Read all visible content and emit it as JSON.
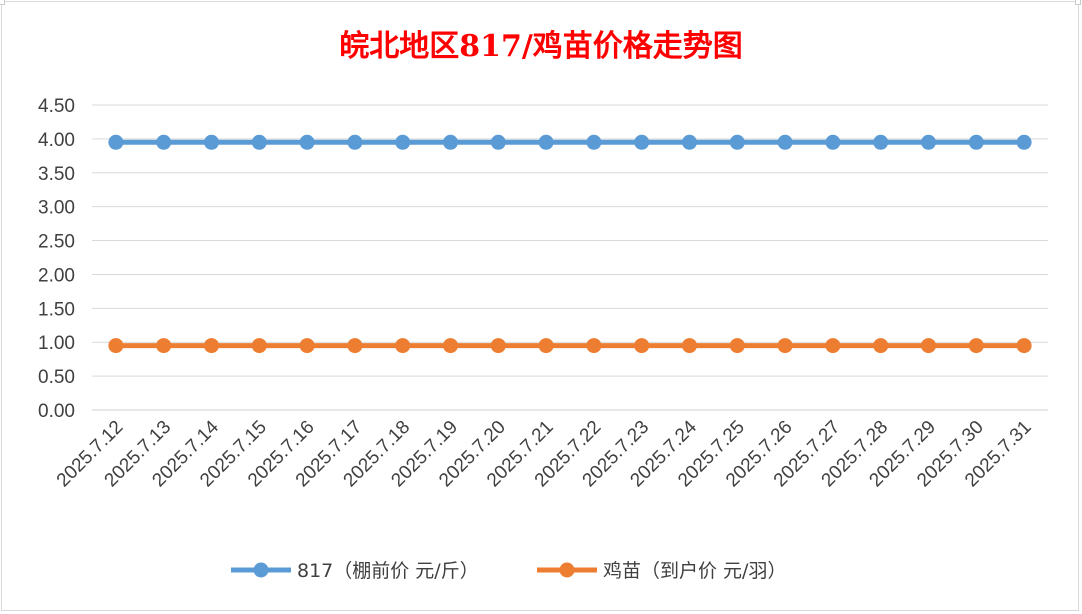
{
  "chart_data": {
    "type": "line",
    "title": "皖北地区817/鸡苗价格走势图",
    "categories": [
      "2025.7.12",
      "2025.7.13",
      "2025.7.14",
      "2025.7.15",
      "2025.7.16",
      "2025.7.17",
      "2025.7.18",
      "2025.7.19",
      "2025.7.20",
      "2025.7.21",
      "2025.7.22",
      "2025.7.23",
      "2025.7.24",
      "2025.7.25",
      "2025.7.26",
      "2025.7.27",
      "2025.7.28",
      "2025.7.29",
      "2025.7.30",
      "2025.7.31"
    ],
    "y_ticks": [
      "0.00",
      "0.50",
      "1.00",
      "1.50",
      "2.00",
      "2.50",
      "3.00",
      "3.50",
      "4.00",
      "4.50"
    ],
    "ylim": [
      0,
      4.5
    ],
    "grid": true,
    "legend_position": "bottom",
    "series": [
      {
        "name": "817（棚前价 元/斤）",
        "color": "#5b9bd5",
        "values": [
          3.95,
          3.95,
          3.95,
          3.95,
          3.95,
          3.95,
          3.95,
          3.95,
          3.95,
          3.95,
          3.95,
          3.95,
          3.95,
          3.95,
          3.95,
          3.95,
          3.95,
          3.95,
          3.95,
          3.95
        ]
      },
      {
        "name": "鸡苗（到户价 元/羽）",
        "color": "#ed7d31",
        "values": [
          0.95,
          0.95,
          0.95,
          0.95,
          0.95,
          0.95,
          0.95,
          0.95,
          0.95,
          0.95,
          0.95,
          0.95,
          0.95,
          0.95,
          0.95,
          0.95,
          0.95,
          0.95,
          0.95,
          0.95
        ]
      }
    ]
  }
}
